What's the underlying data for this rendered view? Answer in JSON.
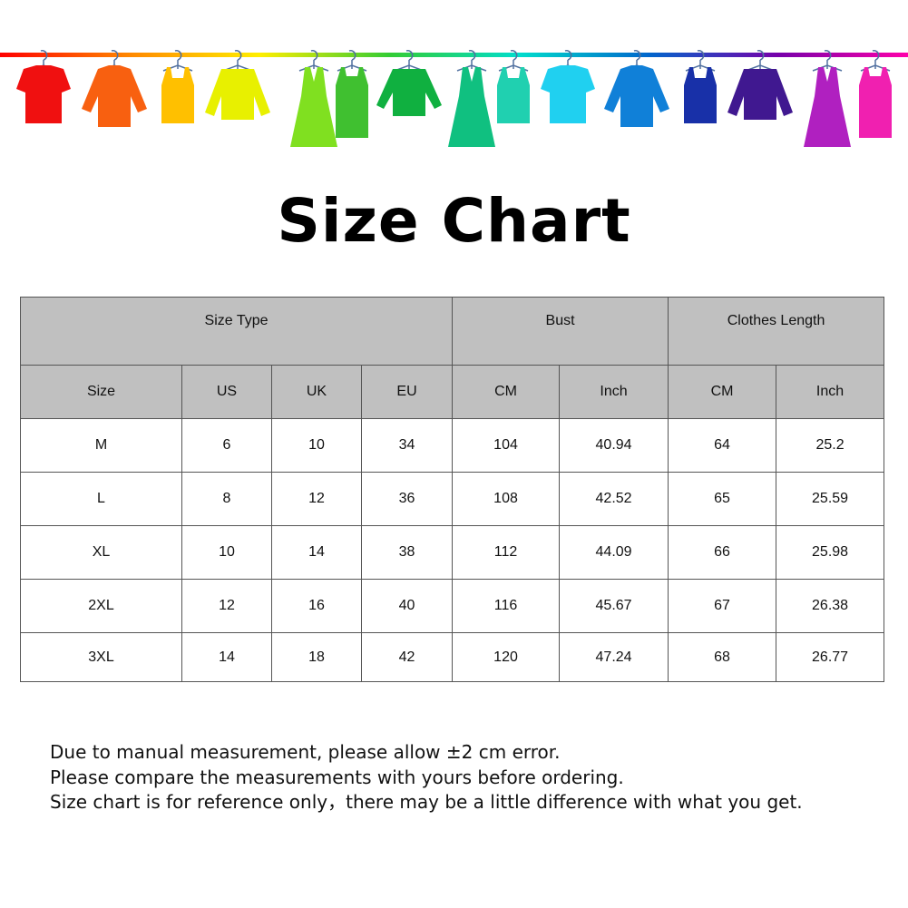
{
  "banner": {
    "rail_colors": [
      "#ff0000",
      "#ff8800",
      "#ffee00",
      "#33cc33",
      "#00ddcc",
      "#0066cc",
      "#7700aa",
      "#ff00aa"
    ],
    "items": [
      {
        "icon": "tshirt-icon",
        "color": "#f01010"
      },
      {
        "icon": "shirt-icon",
        "color": "#f86010"
      },
      {
        "icon": "tank-top-icon",
        "color": "#ffc000"
      },
      {
        "icon": "cardigan-icon",
        "color": "#e8f000"
      },
      {
        "icon": "dress-icon",
        "color": "#80e020"
      },
      {
        "icon": "tank-dress-icon",
        "color": "#40c030"
      },
      {
        "icon": "sweater-icon",
        "color": "#10b040"
      },
      {
        "icon": "dress-icon",
        "color": "#10c080"
      },
      {
        "icon": "tank-top-icon",
        "color": "#20d0b0"
      },
      {
        "icon": "tshirt-icon",
        "color": "#20d0f0"
      },
      {
        "icon": "shirt-icon",
        "color": "#1080d8"
      },
      {
        "icon": "tank-top-icon",
        "color": "#1830a8"
      },
      {
        "icon": "cardigan-icon",
        "color": "#401890"
      },
      {
        "icon": "dress-icon",
        "color": "#b020c0"
      },
      {
        "icon": "tank-dress-icon",
        "color": "#f020b0"
      }
    ]
  },
  "title": "Size Chart",
  "table": {
    "group_headers": [
      "Size Type",
      "Bust",
      "Clothes Length"
    ],
    "sub_headers": [
      "Size",
      "US",
      "UK",
      "EU",
      "CM",
      "Inch",
      "CM",
      "Inch"
    ],
    "rows": [
      [
        "M",
        "6",
        "10",
        "34",
        "104",
        "40.94",
        "64",
        "25.2"
      ],
      [
        "L",
        "8",
        "12",
        "36",
        "108",
        "42.52",
        "65",
        "25.59"
      ],
      [
        "XL",
        "10",
        "14",
        "38",
        "112",
        "44.09",
        "66",
        "25.98"
      ],
      [
        "2XL",
        "12",
        "16",
        "40",
        "116",
        "45.67",
        "67",
        "26.38"
      ],
      [
        "3XL",
        "14",
        "18",
        "42",
        "120",
        "47.24",
        "68",
        "26.77"
      ]
    ],
    "header_bg": "#c0c0c0"
  },
  "notes": [
    "Due to manual measurement, please allow ±2 cm error.",
    "Please compare the measurements with yours before ordering.",
    "Size chart is for reference only，there may be a little difference with what you get."
  ]
}
